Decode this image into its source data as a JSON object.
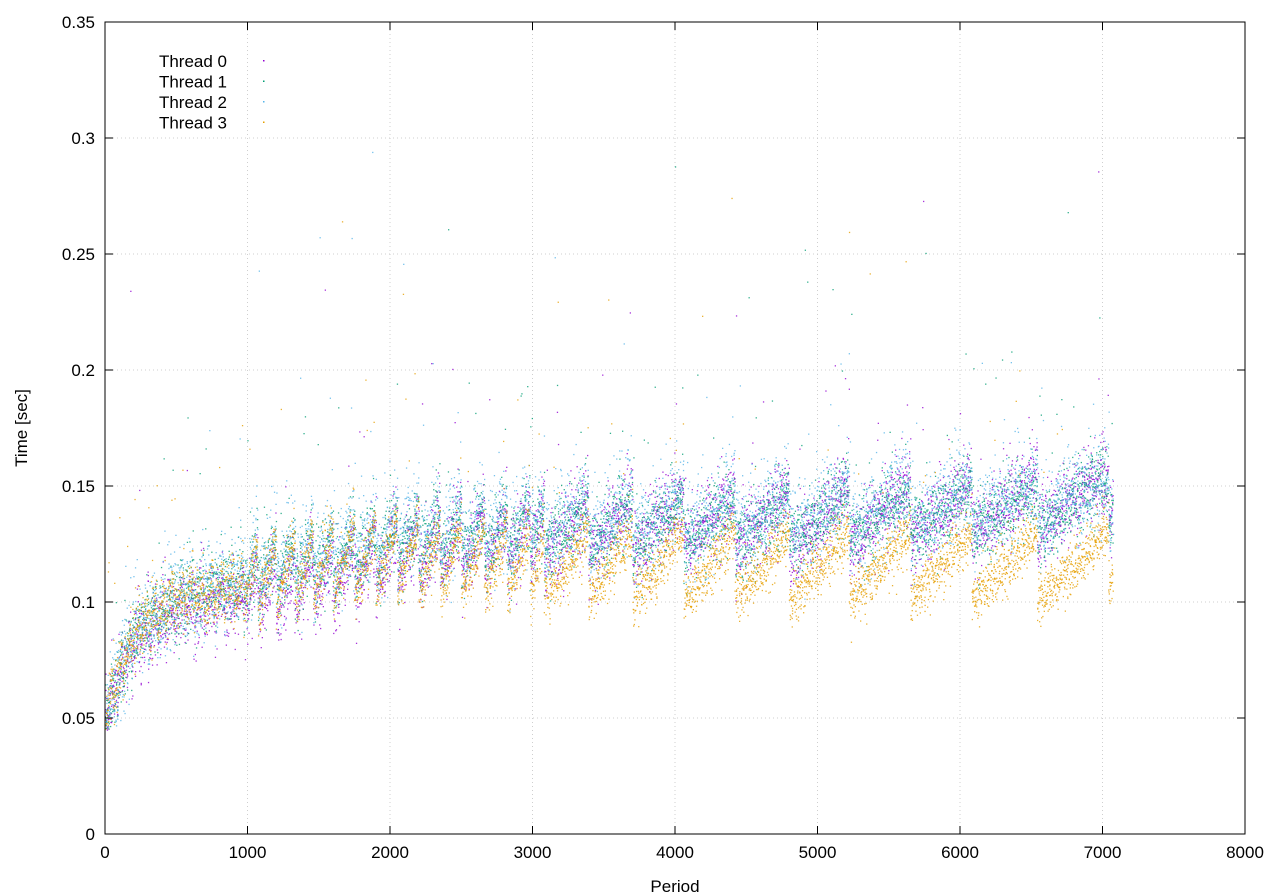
{
  "chart_data": {
    "type": "scatter",
    "title": "",
    "xlabel": "Period",
    "ylabel": "Time [sec]",
    "xlim": [
      0,
      8000
    ],
    "ylim": [
      0,
      0.35
    ],
    "x_ticks": [
      0,
      1000,
      2000,
      3000,
      4000,
      5000,
      6000,
      7000,
      8000
    ],
    "y_ticks": [
      0,
      0.05,
      0.1,
      0.15,
      0.2,
      0.25,
      0.3,
      0.35
    ],
    "x_tick_labels": [
      "0",
      "1000",
      "2000",
      "3000",
      "4000",
      "5000",
      "6000",
      "7000",
      "8000"
    ],
    "y_tick_labels": [
      "0",
      "0.05",
      "0.1",
      "0.15",
      "0.2",
      "0.25",
      "0.3",
      "0.35"
    ],
    "grid": true,
    "legend_position": "top-left",
    "x_max_observed": 7070,
    "cycle_starts": [
      0,
      60,
      120,
      180,
      240,
      300,
      360,
      420,
      480,
      550,
      620,
      690,
      760,
      830,
      900,
      970,
      1070,
      1200,
      1330,
      1460,
      1600,
      1750,
      1900,
      2050,
      2200,
      2350,
      2500,
      2660,
      2820,
      2980,
      3080,
      3390,
      3700,
      4060,
      4420,
      4800,
      5220,
      5650,
      6080,
      6540,
      7040
    ],
    "series": [
      {
        "name": "Thread 0",
        "color": "#9400d3",
        "base_values": [
          0.05,
          0.082,
          0.095,
          0.1,
          0.105,
          0.115,
          0.125,
          0.13,
          0.13,
          0.135,
          0.14
        ],
        "at_periods": [
          0,
          200,
          500,
          1000,
          1500,
          2000,
          3000,
          4000,
          5000,
          6000,
          7000
        ],
        "ramp": 0.025,
        "spread": 0.008
      },
      {
        "name": "Thread 1",
        "color": "#009e73",
        "base_values": [
          0.05,
          0.085,
          0.1,
          0.108,
          0.115,
          0.122,
          0.128,
          0.13,
          0.132,
          0.135,
          0.14
        ],
        "at_periods": [
          0,
          200,
          500,
          1000,
          1500,
          2000,
          3000,
          4000,
          5000,
          6000,
          7000
        ],
        "ramp": 0.02,
        "spread": 0.008
      },
      {
        "name": "Thread 2",
        "color": "#56b4e9",
        "base_values": [
          0.05,
          0.085,
          0.1,
          0.11,
          0.118,
          0.125,
          0.13,
          0.132,
          0.135,
          0.138,
          0.142
        ],
        "at_periods": [
          0,
          200,
          500,
          1000,
          1500,
          2000,
          3000,
          4000,
          5000,
          6000,
          7000
        ],
        "ramp": 0.02,
        "spread": 0.01
      },
      {
        "name": "Thread 3",
        "color": "#e69f00",
        "base_values": [
          0.05,
          0.085,
          0.1,
          0.105,
          0.11,
          0.115,
          0.11,
          0.11,
          0.11,
          0.11,
          0.11
        ],
        "at_periods": [
          0,
          200,
          500,
          1000,
          1500,
          2000,
          3000,
          4000,
          5000,
          6000,
          7000
        ],
        "ramp": 0.03,
        "spread": 0.006
      }
    ]
  }
}
